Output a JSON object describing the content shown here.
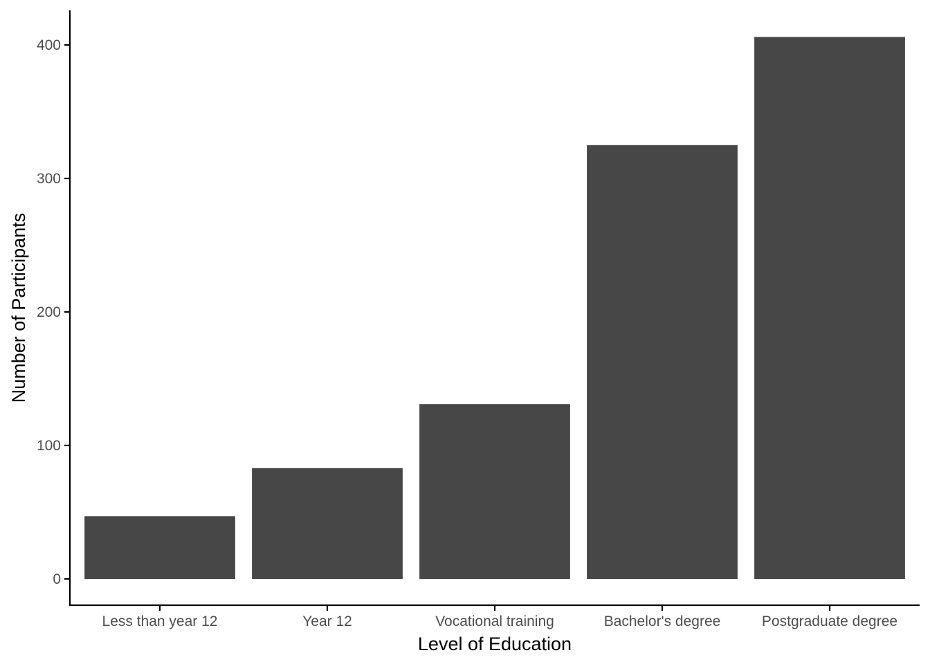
{
  "chart_data": {
    "type": "bar",
    "categories": [
      "Less than year 12",
      "Year 12",
      "Vocational training",
      "Bachelor's degree",
      "Postgraduate degree"
    ],
    "values": [
      47,
      83,
      131,
      325,
      406
    ],
    "title": "",
    "xlabel": "Level of Education",
    "ylabel": "Number of Participants",
    "ylim": [
      0,
      400
    ],
    "yticks": [
      0,
      100,
      200,
      300,
      400
    ],
    "grid": false,
    "legend": "none",
    "bar_color": "#474747"
  }
}
